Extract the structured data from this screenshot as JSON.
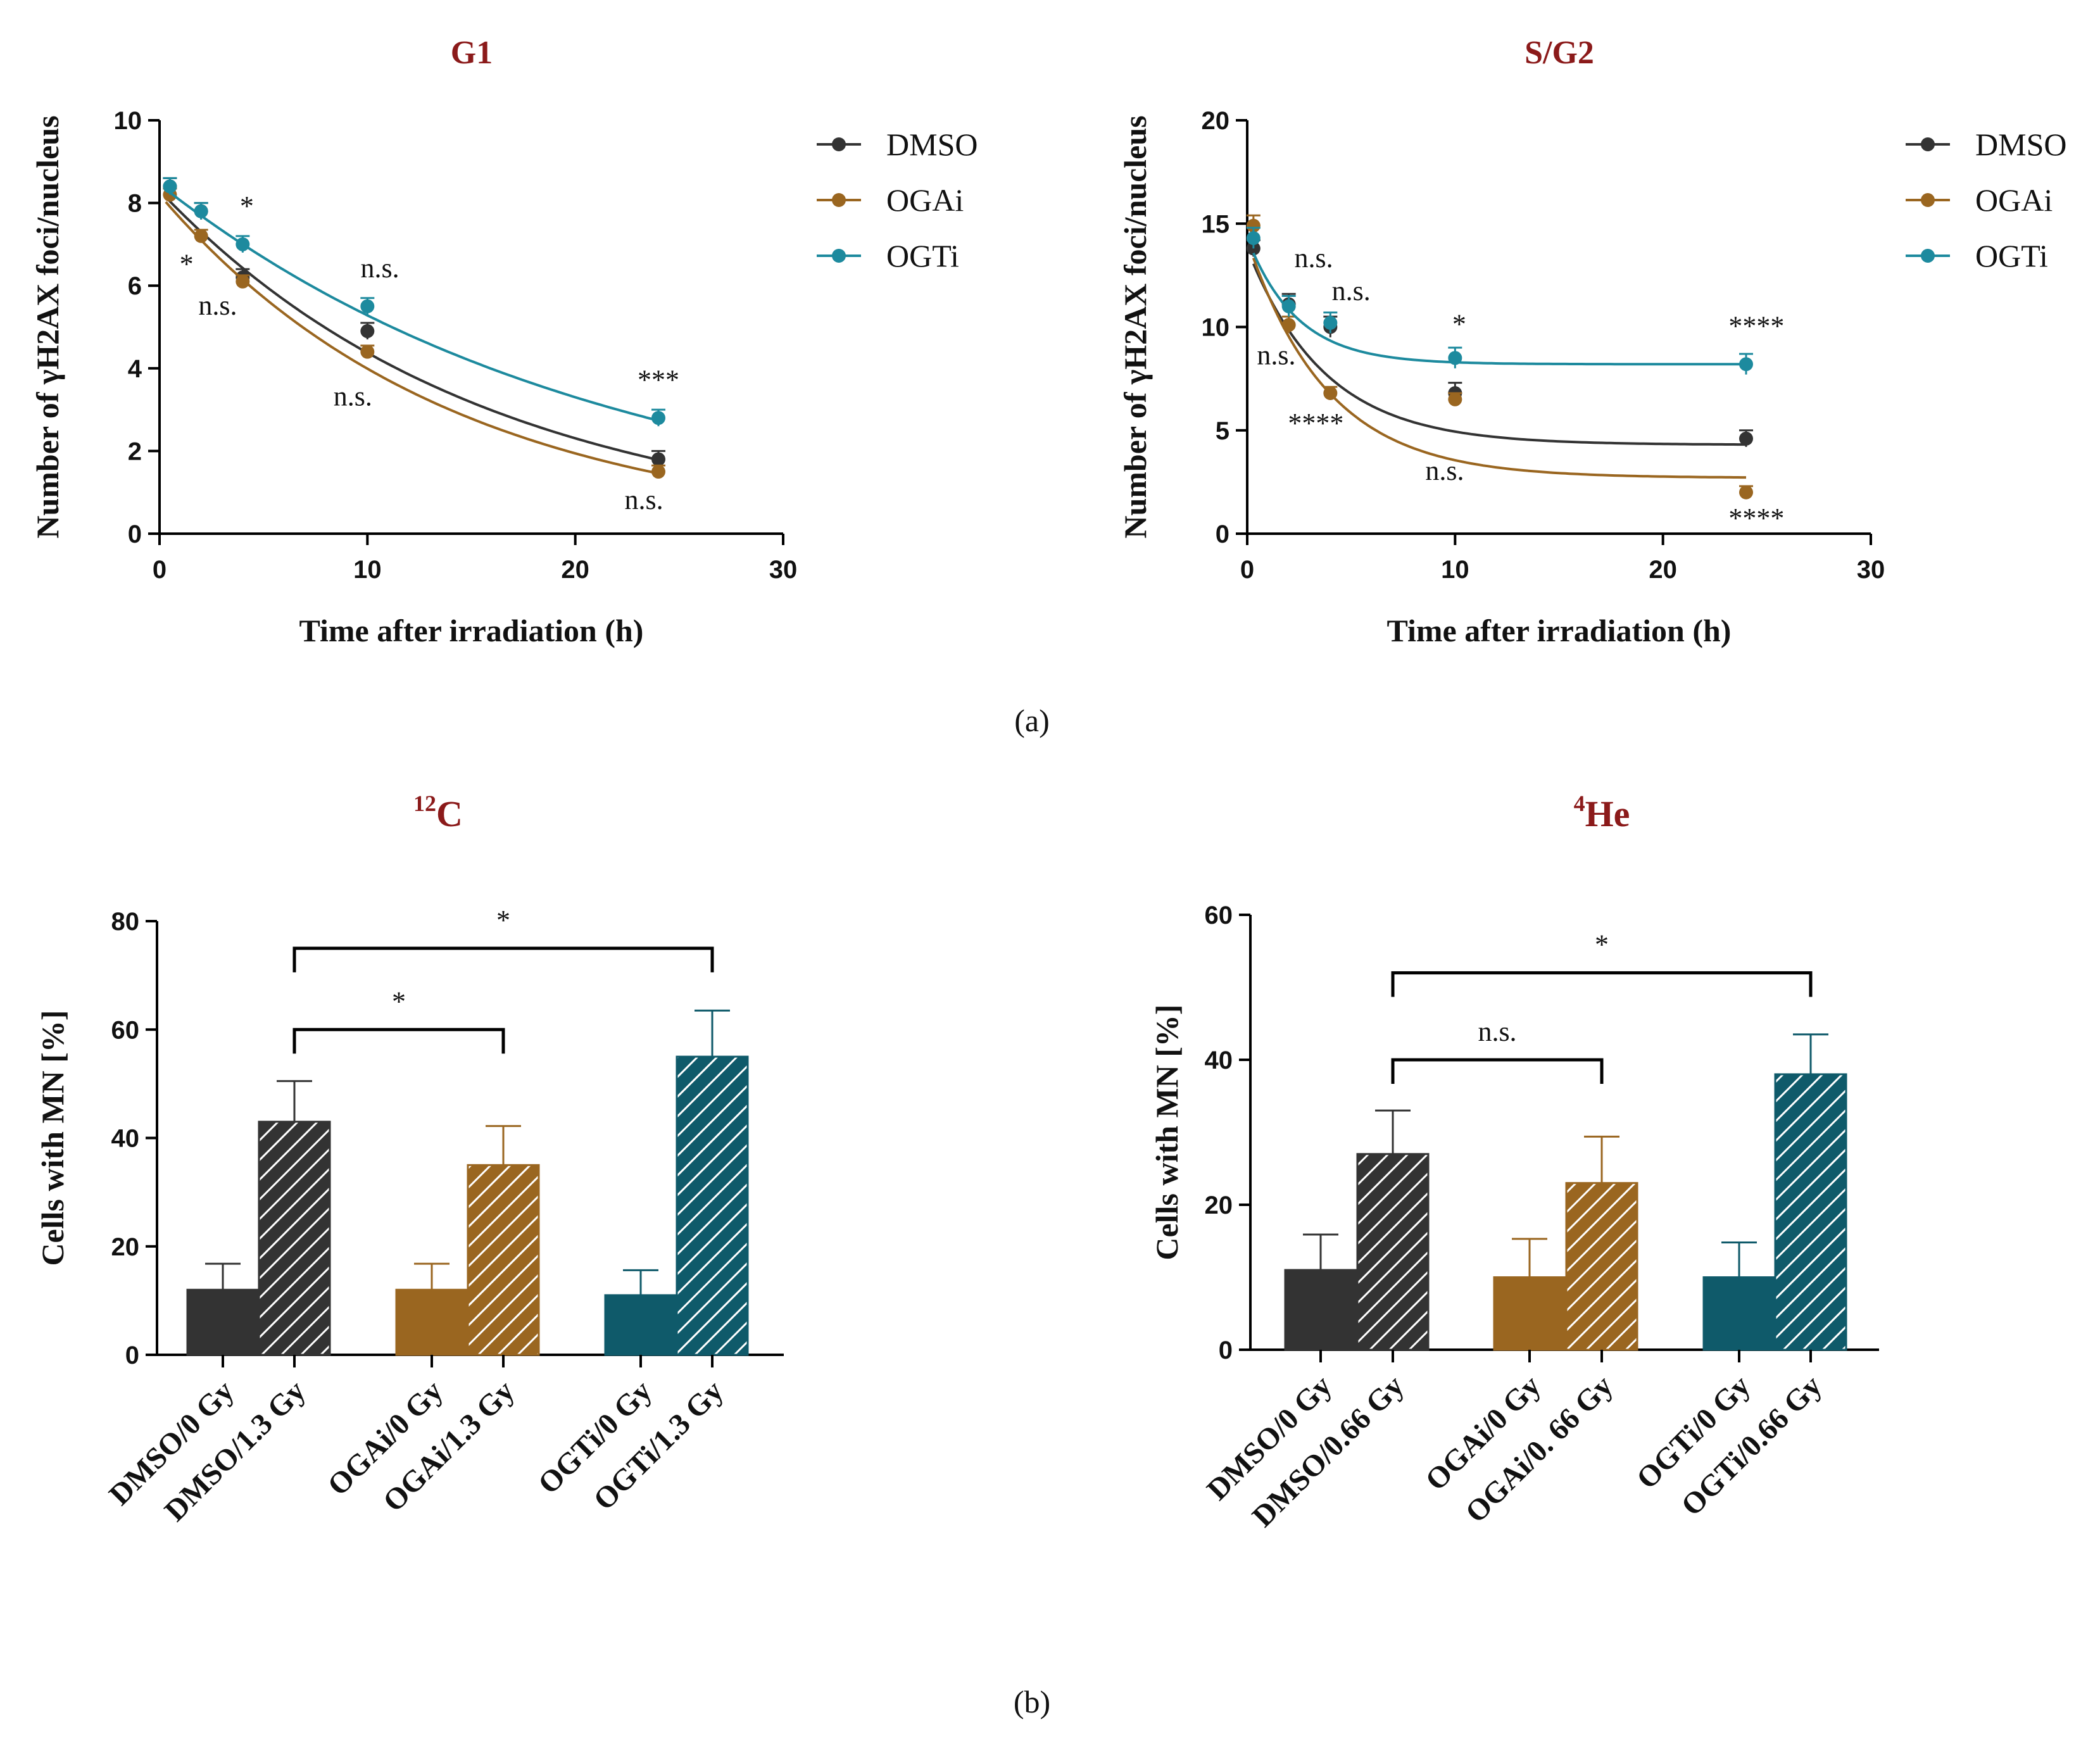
{
  "panel_labels": {
    "a": "(a)",
    "b": "(b)"
  },
  "colors": {
    "DMSO": "#333333",
    "OGAi": "#9a6620",
    "OGTi": "#1d8a9e",
    "OGTi_bar": "#0f5a6a",
    "title": "#8b1a1a"
  },
  "chart_data": [
    {
      "id": "g1",
      "type": "line",
      "title": "G1",
      "xlabel": "Time after irradiation (h)",
      "ylabel": "Number of γH2AX foci/nucleus",
      "xlim": [
        0,
        30
      ],
      "ylim": [
        0,
        10
      ],
      "xticks": [
        0,
        10,
        20,
        30
      ],
      "yticks": [
        0,
        2,
        4,
        6,
        8,
        10
      ],
      "x": [
        0.5,
        2,
        4,
        10,
        24
      ],
      "series": [
        {
          "name": "DMSO",
          "values": [
            8.4,
            7.8,
            6.2,
            4.9,
            1.8
          ],
          "errors": [
            0.2,
            0.2,
            0.2,
            0.2,
            0.2
          ],
          "fit": {
            "a": 8.3,
            "k": 0.064
          }
        },
        {
          "name": "OGAi",
          "values": [
            8.2,
            7.2,
            6.1,
            4.4,
            1.5
          ],
          "errors": [
            0.15,
            0.15,
            0.15,
            0.15,
            0.15
          ],
          "fit": {
            "a": 8.2,
            "k": 0.072
          }
        },
        {
          "name": "OGTi",
          "values": [
            8.4,
            7.8,
            7.0,
            5.5,
            2.8
          ],
          "errors": [
            0.2,
            0.2,
            0.2,
            0.2,
            0.2
          ],
          "fit": {
            "a": 8.45,
            "k": 0.047
          }
        }
      ],
      "annotations": [
        {
          "text": "*",
          "x": 4.2,
          "y": 7.7
        },
        {
          "text": "*",
          "x": 1.3,
          "y": 6.3
        },
        {
          "text": "n.s.",
          "x": 2.8,
          "y": 5.3
        },
        {
          "text": "n.s.",
          "x": 10.6,
          "y": 6.2
        },
        {
          "text": "n.s.",
          "x": 9.3,
          "y": 3.1
        },
        {
          "text": "***",
          "x": 24,
          "y": 3.5
        },
        {
          "text": "n.s.",
          "x": 23.3,
          "y": 0.6
        }
      ]
    },
    {
      "id": "sg2",
      "type": "line",
      "title": "S/G2",
      "xlabel": "Time after irradiation (h)",
      "ylabel": "Number of γH2AX foci/nucleus",
      "xlim": [
        0,
        30
      ],
      "ylim": [
        0,
        20
      ],
      "xticks": [
        0,
        10,
        20,
        30
      ],
      "yticks": [
        0,
        5,
        10,
        15,
        20
      ],
      "x": [
        0.3,
        2,
        4,
        10,
        24
      ],
      "series": [
        {
          "name": "DMSO",
          "values": [
            13.8,
            11.1,
            10.0,
            6.8,
            4.6
          ],
          "errors": [
            0.4,
            0.5,
            0.5,
            0.5,
            0.4
          ],
          "fit": {
            "a": 9.5,
            "k": 0.27,
            "c": 4.3
          }
        },
        {
          "name": "OGAi",
          "values": [
            14.9,
            10.1,
            6.8,
            6.5,
            2.0
          ],
          "errors": [
            0.5,
            0.4,
            0.3,
            0.3,
            0.3
          ],
          "fit": {
            "a": 11.5,
            "k": 0.26,
            "c": 2.7
          }
        },
        {
          "name": "OGTi",
          "values": [
            14.3,
            11.0,
            10.2,
            8.5,
            8.2
          ],
          "errors": [
            0.5,
            0.5,
            0.5,
            0.5,
            0.5
          ],
          "fit": {
            "a": 6.1,
            "k": 0.42,
            "c": 8.2
          }
        }
      ],
      "annotations": [
        {
          "text": "n.s.",
          "x": 3.2,
          "y": 12.9
        },
        {
          "text": "n.s.",
          "x": 5,
          "y": 11.3
        },
        {
          "text": "*",
          "x": 10.2,
          "y": 9.7
        },
        {
          "text": "****",
          "x": 24.5,
          "y": 9.6
        },
        {
          "text": "n.s.",
          "x": 1.4,
          "y": 8.2
        },
        {
          "text": "****",
          "x": 3.3,
          "y": 4.9
        },
        {
          "text": "n.s.",
          "x": 9.5,
          "y": 2.6
        },
        {
          "text": "****",
          "x": 24.5,
          "y": 0.3
        }
      ]
    },
    {
      "id": "c12",
      "type": "bar",
      "title": "C",
      "title_sup": "12",
      "ylabel": "Cells with MN [%]",
      "ylim": [
        0,
        80
      ],
      "yticks": [
        0,
        20,
        40,
        60,
        80
      ],
      "categories": [
        "DMSO/0 Gy",
        "DMSO/1.3 Gy",
        "OGAi/0 Gy",
        "OGAi/1.3 Gy",
        "OGTi/0 Gy",
        "OGTi/1.3 Gy"
      ],
      "groups": [
        "DMSO",
        "DMSO",
        "OGAi",
        "OGAi",
        "OGTi",
        "OGTi"
      ],
      "hatched": [
        false,
        true,
        false,
        true,
        false,
        true
      ],
      "values": [
        12,
        43,
        12,
        35,
        11,
        55
      ],
      "errors": [
        4.8,
        7.5,
        4.8,
        7.2,
        4.6,
        8.5
      ],
      "brackets": [
        {
          "from": 1,
          "to": 3,
          "text": "*",
          "y": 60
        },
        {
          "from": 1,
          "to": 5,
          "text": "*",
          "y": 75
        }
      ]
    },
    {
      "id": "he4",
      "type": "bar",
      "title": "He",
      "title_sup": "4",
      "ylabel": "Cells with MN [%]",
      "ylim": [
        0,
        60
      ],
      "yticks": [
        0,
        20,
        40,
        60
      ],
      "categories": [
        "DMSO/0 Gy",
        "DMSO/0.66 Gy",
        "OGAi/0 Gy",
        "OGAi/0. 66 Gy",
        "OGTi/0 Gy",
        "OGTi/0.66 Gy"
      ],
      "groups": [
        "DMSO",
        "DMSO",
        "OGAi",
        "OGAi",
        "OGTi",
        "OGTi"
      ],
      "hatched": [
        false,
        true,
        false,
        true,
        false,
        true
      ],
      "values": [
        11,
        27,
        10,
        23,
        10,
        38
      ],
      "errors": [
        4.9,
        6.0,
        5.3,
        6.4,
        4.8,
        5.5
      ],
      "brackets": [
        {
          "from": 1,
          "to": 3,
          "text": "n.s.",
          "y": 40
        },
        {
          "from": 1,
          "to": 5,
          "text": "*",
          "y": 52
        }
      ]
    }
  ]
}
